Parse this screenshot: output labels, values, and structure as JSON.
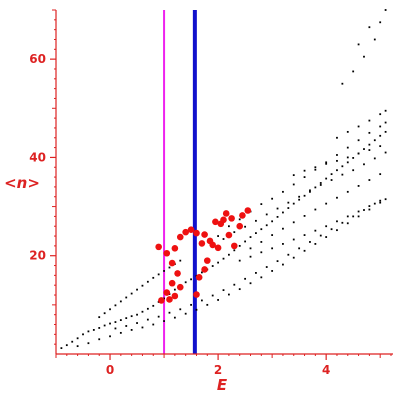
{
  "chart_data": {
    "type": "scatter",
    "title": "",
    "xlabel": "E",
    "ylabel": "<n>",
    "xlim": [
      -1.0,
      5.2
    ],
    "ylim": [
      0,
      70
    ],
    "x_ticks": [
      0,
      2,
      4
    ],
    "y_ticks": [
      20,
      40,
      60
    ],
    "grid": false,
    "colors": {
      "axis": "#dd2222",
      "black_series": "#000000",
      "red_series": "#ee1111",
      "vline_1": "#ee22ee",
      "vline_2": "#1111cc"
    },
    "vlines": [
      {
        "x": 1.0,
        "color": "#ee22ee"
      },
      {
        "x": 1.57,
        "color": "#1111cc"
      }
    ],
    "series": [
      {
        "color": "#000000",
        "marker": "dot",
        "points": [
          [
            -0.9,
            1.2
          ],
          [
            -0.8,
            1.8
          ],
          [
            -0.7,
            2.5
          ],
          [
            -0.6,
            3.2
          ],
          [
            -0.5,
            4.0
          ],
          [
            -0.4,
            4.6
          ],
          [
            -0.3,
            4.9
          ],
          [
            -0.2,
            5.3
          ],
          [
            -0.1,
            5.8
          ],
          [
            0.0,
            6.2
          ],
          [
            0.1,
            6.5
          ],
          [
            0.2,
            6.9
          ],
          [
            0.3,
            7.3
          ],
          [
            0.4,
            7.7
          ],
          [
            0.5,
            8.0
          ],
          [
            0.6,
            8.6
          ],
          [
            0.7,
            9.2
          ],
          [
            0.8,
            9.8
          ],
          [
            0.9,
            10.6
          ],
          [
            1.0,
            11.3
          ],
          [
            1.1,
            12.2
          ],
          [
            1.2,
            13.1
          ],
          [
            1.3,
            13.9
          ],
          [
            1.4,
            14.6
          ],
          [
            1.5,
            15.2
          ],
          [
            1.6,
            15.9
          ],
          [
            1.7,
            16.6
          ],
          [
            1.8,
            17.2
          ],
          [
            1.9,
            17.9
          ],
          [
            2.0,
            18.6
          ],
          [
            2.1,
            19.4
          ],
          [
            2.2,
            20.2
          ],
          [
            2.3,
            21.1
          ],
          [
            2.4,
            22.0
          ],
          [
            2.5,
            22.9
          ],
          [
            2.6,
            23.8
          ],
          [
            2.7,
            24.6
          ],
          [
            2.8,
            25.4
          ],
          [
            2.9,
            26.2
          ],
          [
            3.0,
            27.0
          ],
          [
            3.1,
            27.9
          ],
          [
            3.2,
            28.8
          ],
          [
            3.3,
            29.7
          ],
          [
            3.4,
            30.6
          ],
          [
            3.5,
            31.4
          ],
          [
            3.6,
            32.2
          ],
          [
            3.7,
            33.0
          ],
          [
            3.8,
            33.9
          ],
          [
            3.9,
            34.8
          ],
          [
            4.0,
            35.7
          ],
          [
            4.1,
            36.6
          ],
          [
            4.2,
            37.4
          ],
          [
            4.3,
            38.2
          ],
          [
            4.4,
            39.0
          ],
          [
            4.5,
            39.9
          ],
          [
            4.6,
            40.8
          ],
          [
            4.7,
            41.7
          ],
          [
            4.8,
            42.6
          ],
          [
            4.9,
            43.5
          ],
          [
            5.0,
            44.4
          ],
          [
            5.1,
            45.2
          ],
          [
            -0.6,
            1.6
          ],
          [
            -0.4,
            2.2
          ],
          [
            -0.2,
            3.0
          ],
          [
            0.0,
            3.6
          ],
          [
            0.2,
            4.3
          ],
          [
            0.4,
            4.9
          ],
          [
            0.6,
            5.4
          ],
          [
            0.8,
            6.0
          ],
          [
            1.0,
            6.7
          ],
          [
            1.2,
            7.4
          ],
          [
            1.4,
            8.2
          ],
          [
            1.6,
            9.0
          ],
          [
            1.8,
            10.0
          ],
          [
            2.0,
            11.0
          ],
          [
            2.2,
            12.1
          ],
          [
            2.4,
            13.2
          ],
          [
            2.6,
            14.4
          ],
          [
            2.8,
            15.6
          ],
          [
            3.0,
            16.9
          ],
          [
            3.2,
            18.2
          ],
          [
            3.4,
            19.6
          ],
          [
            3.6,
            21.0
          ],
          [
            3.8,
            22.4
          ],
          [
            4.0,
            23.8
          ],
          [
            4.2,
            25.2
          ],
          [
            4.4,
            26.6
          ],
          [
            4.6,
            28.0
          ],
          [
            4.8,
            29.4
          ],
          [
            5.0,
            30.8
          ],
          [
            5.1,
            31.5
          ],
          [
            0.1,
            5.2
          ],
          [
            0.3,
            5.7
          ],
          [
            0.5,
            6.3
          ],
          [
            0.7,
            7.0
          ],
          [
            0.9,
            7.6
          ],
          [
            1.1,
            8.4
          ],
          [
            1.3,
            9.1
          ],
          [
            1.5,
            10.0
          ],
          [
            1.7,
            10.9
          ],
          [
            1.9,
            11.9
          ],
          [
            2.1,
            13.0
          ],
          [
            2.3,
            14.1
          ],
          [
            2.5,
            15.3
          ],
          [
            2.7,
            16.5
          ],
          [
            2.9,
            17.7
          ],
          [
            3.1,
            18.9
          ],
          [
            3.3,
            20.2
          ],
          [
            3.5,
            21.5
          ],
          [
            3.7,
            22.8
          ],
          [
            3.9,
            24.1
          ],
          [
            4.1,
            25.4
          ],
          [
            4.3,
            26.7
          ],
          [
            4.5,
            28.0
          ],
          [
            4.7,
            29.3
          ],
          [
            4.9,
            30.6
          ],
          [
            -0.2,
            7.5
          ],
          [
            -0.1,
            8.3
          ],
          [
            0.0,
            9.1
          ],
          [
            0.1,
            9.9
          ],
          [
            0.2,
            10.7
          ],
          [
            0.3,
            11.5
          ],
          [
            0.4,
            12.3
          ],
          [
            0.5,
            13.1
          ],
          [
            0.6,
            13.9
          ],
          [
            0.7,
            14.7
          ],
          [
            0.8,
            15.5
          ],
          [
            0.9,
            16.2
          ],
          [
            1.0,
            16.9
          ],
          [
            1.1,
            17.6
          ],
          [
            1.2,
            18.3
          ],
          [
            1.3,
            19.0
          ],
          [
            2.1,
            23.4
          ],
          [
            2.3,
            24.8
          ],
          [
            2.5,
            25.9
          ],
          [
            2.7,
            27.1
          ],
          [
            2.9,
            28.4
          ],
          [
            3.1,
            29.6
          ],
          [
            3.3,
            30.8
          ],
          [
            3.5,
            32.0
          ],
          [
            3.7,
            33.3
          ],
          [
            3.9,
            34.4
          ],
          [
            4.1,
            35.4
          ],
          [
            4.3,
            36.5
          ],
          [
            4.5,
            37.4
          ],
          [
            4.7,
            38.6
          ],
          [
            4.9,
            39.8
          ],
          [
            5.1,
            41.0
          ],
          [
            2.0,
            24.0
          ],
          [
            2.2,
            26.0
          ],
          [
            2.4,
            27.4
          ],
          [
            2.6,
            29.0
          ],
          [
            2.8,
            30.5
          ],
          [
            3.0,
            31.6
          ],
          [
            3.2,
            33.0
          ],
          [
            3.4,
            34.5
          ],
          [
            3.6,
            36.0
          ],
          [
            3.8,
            37.5
          ],
          [
            4.0,
            39.0
          ],
          [
            4.2,
            40.5
          ],
          [
            4.4,
            42.0
          ],
          [
            4.6,
            43.5
          ],
          [
            4.8,
            45.0
          ],
          [
            5.0,
            46.3
          ],
          [
            5.1,
            47.1
          ],
          [
            2.6,
            21.5
          ],
          [
            2.8,
            22.8
          ],
          [
            3.0,
            24.2
          ],
          [
            3.2,
            25.5
          ],
          [
            3.4,
            26.8
          ],
          [
            3.6,
            28.1
          ],
          [
            3.8,
            29.4
          ],
          [
            4.0,
            30.6
          ],
          [
            4.2,
            31.8
          ],
          [
            4.4,
            33.0
          ],
          [
            4.6,
            34.2
          ],
          [
            4.8,
            35.4
          ],
          [
            5.0,
            36.6
          ],
          [
            2.4,
            19.0
          ],
          [
            2.6,
            19.8
          ],
          [
            2.8,
            20.7
          ],
          [
            3.0,
            21.5
          ],
          [
            3.2,
            22.4
          ],
          [
            3.4,
            23.3
          ],
          [
            3.6,
            24.2
          ],
          [
            3.8,
            25.1
          ],
          [
            4.0,
            26.0
          ],
          [
            4.2,
            27.0
          ],
          [
            4.4,
            28.0
          ],
          [
            4.6,
            29.0
          ],
          [
            4.8,
            30.1
          ],
          [
            5.0,
            31.2
          ],
          [
            3.4,
            36.4
          ],
          [
            3.6,
            37.3
          ],
          [
            3.8,
            38.0
          ],
          [
            4.0,
            38.7
          ],
          [
            4.2,
            39.3
          ],
          [
            4.4,
            40.0
          ],
          [
            4.6,
            40.8
          ],
          [
            4.8,
            41.5
          ],
          [
            5.0,
            42.3
          ],
          [
            4.2,
            44.0
          ],
          [
            4.4,
            45.2
          ],
          [
            4.6,
            46.3
          ],
          [
            4.8,
            47.5
          ],
          [
            5.0,
            48.8
          ],
          [
            5.1,
            49.5
          ],
          [
            4.3,
            55.0
          ],
          [
            4.5,
            57.5
          ],
          [
            4.7,
            60.5
          ],
          [
            4.9,
            64.0
          ],
          [
            5.0,
            67.5
          ],
          [
            5.1,
            70.0
          ],
          [
            4.6,
            63.0
          ],
          [
            4.8,
            66.5
          ]
        ]
      },
      {
        "color": "#ee1111",
        "marker": "circle",
        "points": [
          [
            0.9,
            21.8
          ],
          [
            1.05,
            20.5
          ],
          [
            1.15,
            18.5
          ],
          [
            1.2,
            21.5
          ],
          [
            1.3,
            23.8
          ],
          [
            1.4,
            24.8
          ],
          [
            1.5,
            25.3
          ],
          [
            1.6,
            24.6
          ],
          [
            1.75,
            24.3
          ],
          [
            1.9,
            22.2
          ],
          [
            2.0,
            21.6
          ],
          [
            2.05,
            26.5
          ],
          [
            2.1,
            27.3
          ],
          [
            2.15,
            28.6
          ],
          [
            1.95,
            26.9
          ],
          [
            1.85,
            23.0
          ],
          [
            1.7,
            22.5
          ],
          [
            1.25,
            16.4
          ],
          [
            1.15,
            14.4
          ],
          [
            1.05,
            12.5
          ],
          [
            1.2,
            11.8
          ],
          [
            1.3,
            13.6
          ],
          [
            1.65,
            15.6
          ],
          [
            1.75,
            17.2
          ],
          [
            1.8,
            19.0
          ],
          [
            2.2,
            24.2
          ],
          [
            2.3,
            22.0
          ],
          [
            2.25,
            27.6
          ],
          [
            1.6,
            12.1
          ],
          [
            1.1,
            11.1
          ],
          [
            0.95,
            10.9
          ],
          [
            2.45,
            28.2
          ],
          [
            2.55,
            29.2
          ],
          [
            2.4,
            26.0
          ]
        ]
      }
    ]
  }
}
